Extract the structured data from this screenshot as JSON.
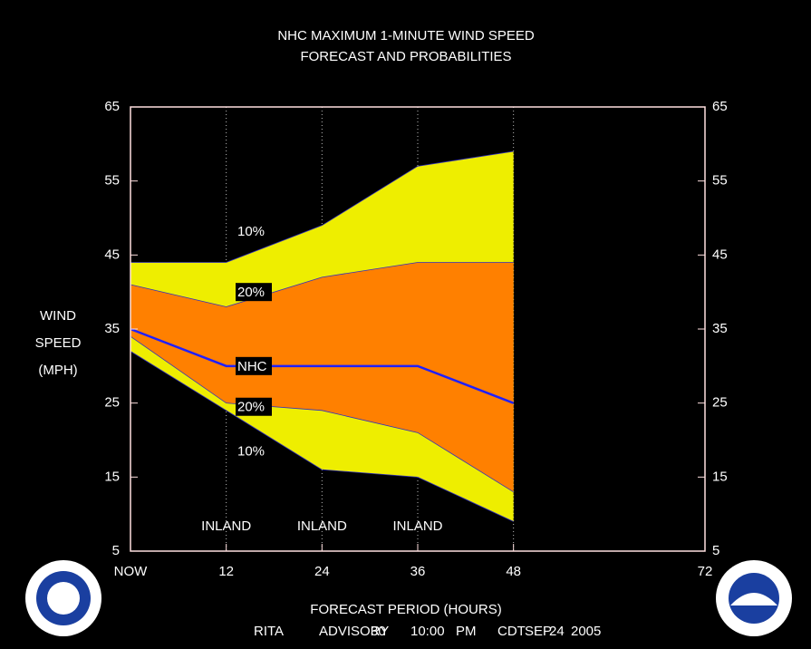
{
  "chart_data": {
    "type": "band",
    "title": "NHC MAXIMUM 1-MINUTE WIND SPEED",
    "subtitle": "FORECAST AND PROBABILITIES",
    "y_label": [
      "WIND",
      "SPEED",
      "(MPH)"
    ],
    "x_label": "FORECAST PERIOD (HOURS)",
    "footer": [
      "RITA",
      "ADVISORY",
      "30",
      "10:00",
      "PM",
      "CDT",
      "SEP",
      "24",
      "2005"
    ],
    "x": [
      0,
      12,
      24,
      36,
      48
    ],
    "series": [
      {
        "name": "10%",
        "color": "#eeee00",
        "values": [
          44,
          44,
          49,
          57,
          59
        ]
      },
      {
        "name": "20%",
        "color": "#ff8000",
        "values": [
          41,
          38,
          42,
          44,
          44
        ]
      },
      {
        "name": "NHC",
        "color": "#2020ff",
        "values": [
          35,
          30,
          30,
          30,
          25
        ]
      },
      {
        "name": "20%",
        "color": "#ff8000",
        "values": [
          34,
          25,
          24,
          21,
          13
        ]
      },
      {
        "name": "10%",
        "color": "#eeee00",
        "values": [
          32,
          24,
          16,
          15,
          9
        ]
      }
    ],
    "annotations": [
      {
        "text": "INLAND",
        "x": 12
      },
      {
        "text": "INLAND",
        "x": 24
      },
      {
        "text": "INLAND",
        "x": 36
      }
    ],
    "xlim": [
      0,
      72
    ],
    "xticks": [
      {
        "value": 0,
        "label": "NOW"
      },
      12,
      24,
      36,
      48,
      72
    ],
    "ylim": [
      5,
      65
    ],
    "yticks": [
      5,
      15,
      25,
      35,
      45,
      55,
      65
    ],
    "y2lim": [
      5,
      65
    ],
    "y2ticks": [
      5,
      15,
      25,
      35,
      45,
      55,
      65
    ],
    "grid": true
  }
}
